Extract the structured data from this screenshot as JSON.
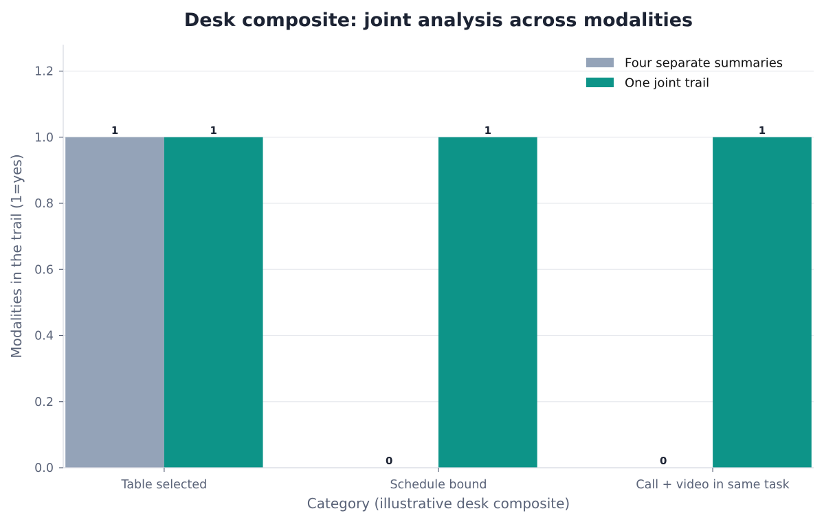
{
  "chart_data": {
    "type": "bar",
    "title": "Desk composite: joint analysis across modalities",
    "xlabel": "Category (illustrative desk composite)",
    "ylabel": "Modalities in the trail (1=yes)",
    "categories": [
      "Table selected",
      "Schedule bound",
      "Call + video in same task"
    ],
    "series": [
      {
        "name": "Four separate summaries",
        "values": [
          1,
          0,
          0
        ],
        "color": "#94a3b8"
      },
      {
        "name": "One joint trail",
        "values": [
          1,
          1,
          1
        ],
        "color": "#0d9488"
      }
    ],
    "ylim": [
      0,
      1.28
    ],
    "yticks": [
      "0.0",
      "0.2",
      "0.4",
      "0.6",
      "0.8",
      "1.0",
      "1.2"
    ],
    "grid": true,
    "legend_position": "top-right"
  }
}
